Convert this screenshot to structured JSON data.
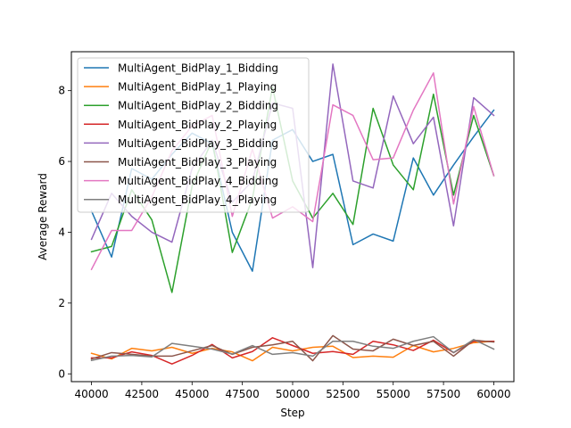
{
  "chart_data": {
    "type": "line",
    "title": "",
    "xlabel": "Step",
    "ylabel": "Average Reward",
    "xlim": [
      39000,
      61000
    ],
    "ylim": [
      -0.22,
      9.1
    ],
    "xticks": [
      40000,
      42500,
      45000,
      47500,
      50000,
      52500,
      55000,
      57500,
      60000
    ],
    "xtick_labels": [
      "40000",
      "42500",
      "45000",
      "47500",
      "50000",
      "52500",
      "55000",
      "57500",
      "60000"
    ],
    "yticks": [
      0,
      2,
      4,
      6,
      8
    ],
    "ytick_labels": [
      "0",
      "2",
      "4",
      "6",
      "8"
    ],
    "grid": false,
    "legend_position": "upper-left",
    "x": [
      40000,
      41000,
      42000,
      43000,
      44000,
      45000,
      46000,
      47000,
      48000,
      49000,
      50000,
      51000,
      52000,
      53000,
      54000,
      55000,
      56000,
      57000,
      58000,
      59000,
      60000
    ],
    "series": [
      {
        "name": "MultiAgent_BidPlay_1_Bidding",
        "color": "#1f77b4",
        "values": [
          4.6,
          3.3,
          5.8,
          5.5,
          6.2,
          6.8,
          6.5,
          4.0,
          2.9,
          6.6,
          6.9,
          6.0,
          6.2,
          3.65,
          3.95,
          3.75,
          6.1,
          5.05,
          5.9,
          6.7,
          7.45
        ]
      },
      {
        "name": "MultiAgent_BidPlay_1_Playing",
        "color": "#ff7f0e",
        "values": [
          0.58,
          0.42,
          0.72,
          0.65,
          0.75,
          0.58,
          0.72,
          0.62,
          0.37,
          0.75,
          0.65,
          0.75,
          0.78,
          0.46,
          0.5,
          0.47,
          0.8,
          0.62,
          0.72,
          0.88,
          0.92
        ]
      },
      {
        "name": "MultiAgent_BidPlay_2_Bidding",
        "color": "#2ca02c",
        "values": [
          3.45,
          3.6,
          5.2,
          4.35,
          2.3,
          5.3,
          6.6,
          3.43,
          4.95,
          8.1,
          5.45,
          4.4,
          5.1,
          4.22,
          7.5,
          5.9,
          5.2,
          7.9,
          5.05,
          7.3,
          5.6
        ]
      },
      {
        "name": "MultiAgent_BidPlay_2_Playing",
        "color": "#d62728",
        "values": [
          0.45,
          0.45,
          0.62,
          0.52,
          0.28,
          0.52,
          0.83,
          0.45,
          0.63,
          1.02,
          0.8,
          0.58,
          0.63,
          0.55,
          0.92,
          0.82,
          0.66,
          0.95,
          0.6,
          0.92,
          0.92
        ]
      },
      {
        "name": "MultiAgent_BidPlay_3_Bidding",
        "color": "#9467bd",
        "values": [
          3.8,
          5.1,
          4.45,
          4.0,
          3.72,
          5.8,
          6.6,
          4.85,
          5.45,
          7.65,
          7.5,
          3.0,
          8.75,
          5.45,
          5.25,
          7.85,
          6.5,
          7.25,
          4.18,
          7.8,
          7.3
        ]
      },
      {
        "name": "MultiAgent_BidPlay_3_Playing",
        "color": "#8c564b",
        "values": [
          0.42,
          0.6,
          0.55,
          0.5,
          0.5,
          0.65,
          0.8,
          0.55,
          0.75,
          0.82,
          0.92,
          0.37,
          1.08,
          0.7,
          0.65,
          0.98,
          0.8,
          0.92,
          0.5,
          0.95,
          0.9
        ]
      },
      {
        "name": "MultiAgent_BidPlay_4_Bidding",
        "color": "#e377c2",
        "values": [
          2.95,
          4.05,
          4.05,
          5.0,
          6.3,
          7.0,
          7.3,
          4.45,
          6.35,
          4.4,
          4.72,
          4.3,
          7.6,
          7.3,
          6.05,
          6.1,
          7.45,
          8.5,
          4.8,
          7.55,
          5.6
        ]
      },
      {
        "name": "MultiAgent_BidPlay_4_Playing",
        "color": "#7f7f7f",
        "values": [
          0.38,
          0.5,
          0.52,
          0.48,
          0.86,
          0.78,
          0.7,
          0.56,
          0.8,
          0.55,
          0.6,
          0.5,
          0.92,
          0.92,
          0.78,
          0.72,
          0.92,
          1.05,
          0.6,
          0.97,
          0.7
        ]
      }
    ]
  }
}
